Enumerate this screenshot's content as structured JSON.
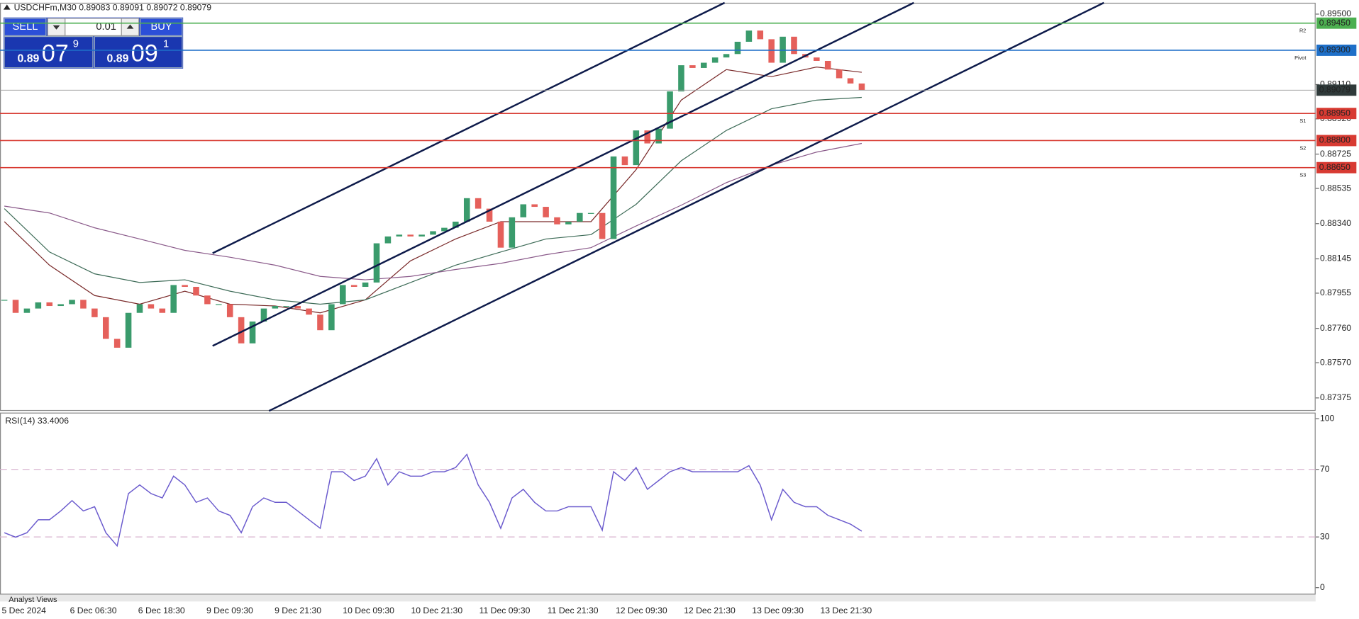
{
  "chart_data": [
    {
      "type": "candlestick",
      "title": "USDCHFm,M30 0.89083 0.89091 0.89072 0.89079",
      "time_labels": [
        "5 Dec 2024",
        "6 Dec 06:30",
        "6 Dec 18:30",
        "9 Dec 09:30",
        "9 Dec 21:30",
        "10 Dec 09:30",
        "10 Dec 21:30",
        "11 Dec 09:30",
        "11 Dec 21:30",
        "12 Dec 09:30",
        "12 Dec 21:30",
        "13 Dec 09:30",
        "13 Dec 21:30"
      ],
      "close": [
        0.87918,
        0.87846,
        0.8787,
        0.87904,
        0.87884,
        0.87894,
        0.87918,
        0.8787,
        0.87822,
        0.87702,
        0.87653,
        0.87846,
        0.87894,
        0.8787,
        0.87846,
        0.88,
        0.8799,
        0.87942,
        0.87894,
        0.87894,
        0.87822,
        0.87677,
        0.87798,
        0.8787,
        0.87884,
        0.87884,
        0.8787,
        0.87836,
        0.8775,
        0.87894,
        0.88,
        0.8799,
        0.88014,
        0.88231,
        0.88269,
        0.88279,
        0.88269,
        0.88279,
        0.88298,
        0.88317,
        0.88351,
        0.88481,
        0.88423,
        0.88351,
        0.88207,
        0.88375,
        0.88447,
        0.88433,
        0.88375,
        0.88336,
        0.88351,
        0.88399,
        0.88399,
        0.88255,
        0.88712,
        0.88664,
        0.88856,
        0.88784,
        0.88866,
        0.89072,
        0.89217,
        0.89202,
        0.89231,
        0.8926,
        0.89279,
        0.89347,
        0.89409,
        0.89361,
        0.89231,
        0.89375,
        0.89279,
        0.8926,
        0.89241,
        0.89193,
        0.89145,
        0.89116,
        0.89079
      ],
      "up_color": "#3a9b6c",
      "down_color": "#e5605b",
      "moving_averages": [
        {
          "color": "#7a2a2a",
          "values": [
            0.88351,
            0.8811,
            0.87942,
            0.87894,
            0.87966,
            0.87894,
            0.87884,
            0.87846,
            0.87918,
            0.88134,
            0.88255,
            0.88351,
            0.88351,
            0.88351,
            0.88639,
            0.89024,
            0.89193,
            0.89154,
            0.89207,
            0.89178
          ]
        },
        {
          "color": "#3d6b57",
          "values": [
            0.88423,
            0.88183,
            0.88062,
            0.88014,
            0.88029,
            0.87966,
            0.87918,
            0.87894,
            0.87918,
            0.88014,
            0.8811,
            0.88183,
            0.88255,
            0.88279,
            0.88447,
            0.88688,
            0.88856,
            0.88976,
            0.89024,
            0.89039
          ]
        },
        {
          "color": "#8a5a8a",
          "values": [
            0.88437,
            0.88399,
            0.88317,
            0.88255,
            0.88192,
            0.88154,
            0.8811,
            0.88048,
            0.88029,
            0.88048,
            0.88086,
            0.8812,
            0.88168,
            0.88207,
            0.88327,
            0.88442,
            0.88567,
            0.88664,
            0.88736,
            0.88784
          ]
        }
      ],
      "ylim": [
        0.87308,
        0.89563
      ],
      "yticks": [
        {
          "value": 0.895,
          "label": "0.89500"
        },
        {
          "value": 0.8911,
          "label": "0.89110"
        },
        {
          "value": 0.8892,
          "label": "0.88920"
        },
        {
          "value": 0.88725,
          "label": "0.88725"
        },
        {
          "value": 0.88535,
          "label": "0.88535"
        },
        {
          "value": 0.8834,
          "label": "0.88340"
        },
        {
          "value": 0.88145,
          "label": "0.88145"
        },
        {
          "value": 0.87955,
          "label": "0.87955"
        },
        {
          "value": 0.8776,
          "label": "0.87760"
        },
        {
          "value": 0.8757,
          "label": "0.87570"
        },
        {
          "value": 0.87375,
          "label": "0.87375"
        }
      ],
      "levels": [
        {
          "name": "R2",
          "value": 0.8945,
          "label": "0.89450",
          "color": "#4caf50"
        },
        {
          "name": "Pivot",
          "value": 0.893,
          "label": "0.89300",
          "color": "#1e6fc8"
        },
        {
          "name": "S1",
          "value": 0.8895,
          "label": "0.88950",
          "color": "#d83a32"
        },
        {
          "name": "S2",
          "value": 0.888,
          "label": "0.88800",
          "color": "#d83a32"
        },
        {
          "name": "S3",
          "value": 0.8865,
          "label": "0.88650",
          "color": "#d83a32"
        }
      ],
      "last_price": {
        "value": 0.89079,
        "label": "0.89079",
        "color": "#2f3a3a"
      }
    },
    {
      "type": "line",
      "title": "RSI(14) 33.4006",
      "color": "#6a5acd",
      "values": [
        32.5,
        29.9,
        32.5,
        40.2,
        40.2,
        45.4,
        51.5,
        45.4,
        47.9,
        32.5,
        24.7,
        55.7,
        60.8,
        55.7,
        53.1,
        66.0,
        60.8,
        50.5,
        53.1,
        45.4,
        42.8,
        32.5,
        47.9,
        53.1,
        50.5,
        50.5,
        45.4,
        40.2,
        35.1,
        68.6,
        68.6,
        63.4,
        66.0,
        76.3,
        60.8,
        68.6,
        66.0,
        66.0,
        68.6,
        68.6,
        71.1,
        78.9,
        60.8,
        50.5,
        35.1,
        53.1,
        58.2,
        50.5,
        45.4,
        45.4,
        47.9,
        47.9,
        47.9,
        34.0,
        68.6,
        63.4,
        71.1,
        58.2,
        63.4,
        68.6,
        71.1,
        68.6,
        68.6,
        68.6,
        68.6,
        68.6,
        72.2,
        60.8,
        40.2,
        58.2,
        50.5,
        47.9,
        47.9,
        42.8,
        40.2,
        37.6,
        33.4006
      ],
      "ylim": [
        -3.6,
        103.1
      ],
      "yticks": [
        100,
        70,
        30,
        0
      ],
      "levels": [
        70,
        30
      ],
      "level_color": "#d9b3cf"
    }
  ],
  "trade_panel": {
    "sell": "SELL",
    "lot": "0.01",
    "buy": "BUY",
    "bid_prefix": "0.89",
    "bid_main": "07",
    "bid_sup": "9",
    "ask_prefix": "0.89",
    "ask_main": "09",
    "ask_sup": "1"
  },
  "footer_tab": "Analyst Views"
}
